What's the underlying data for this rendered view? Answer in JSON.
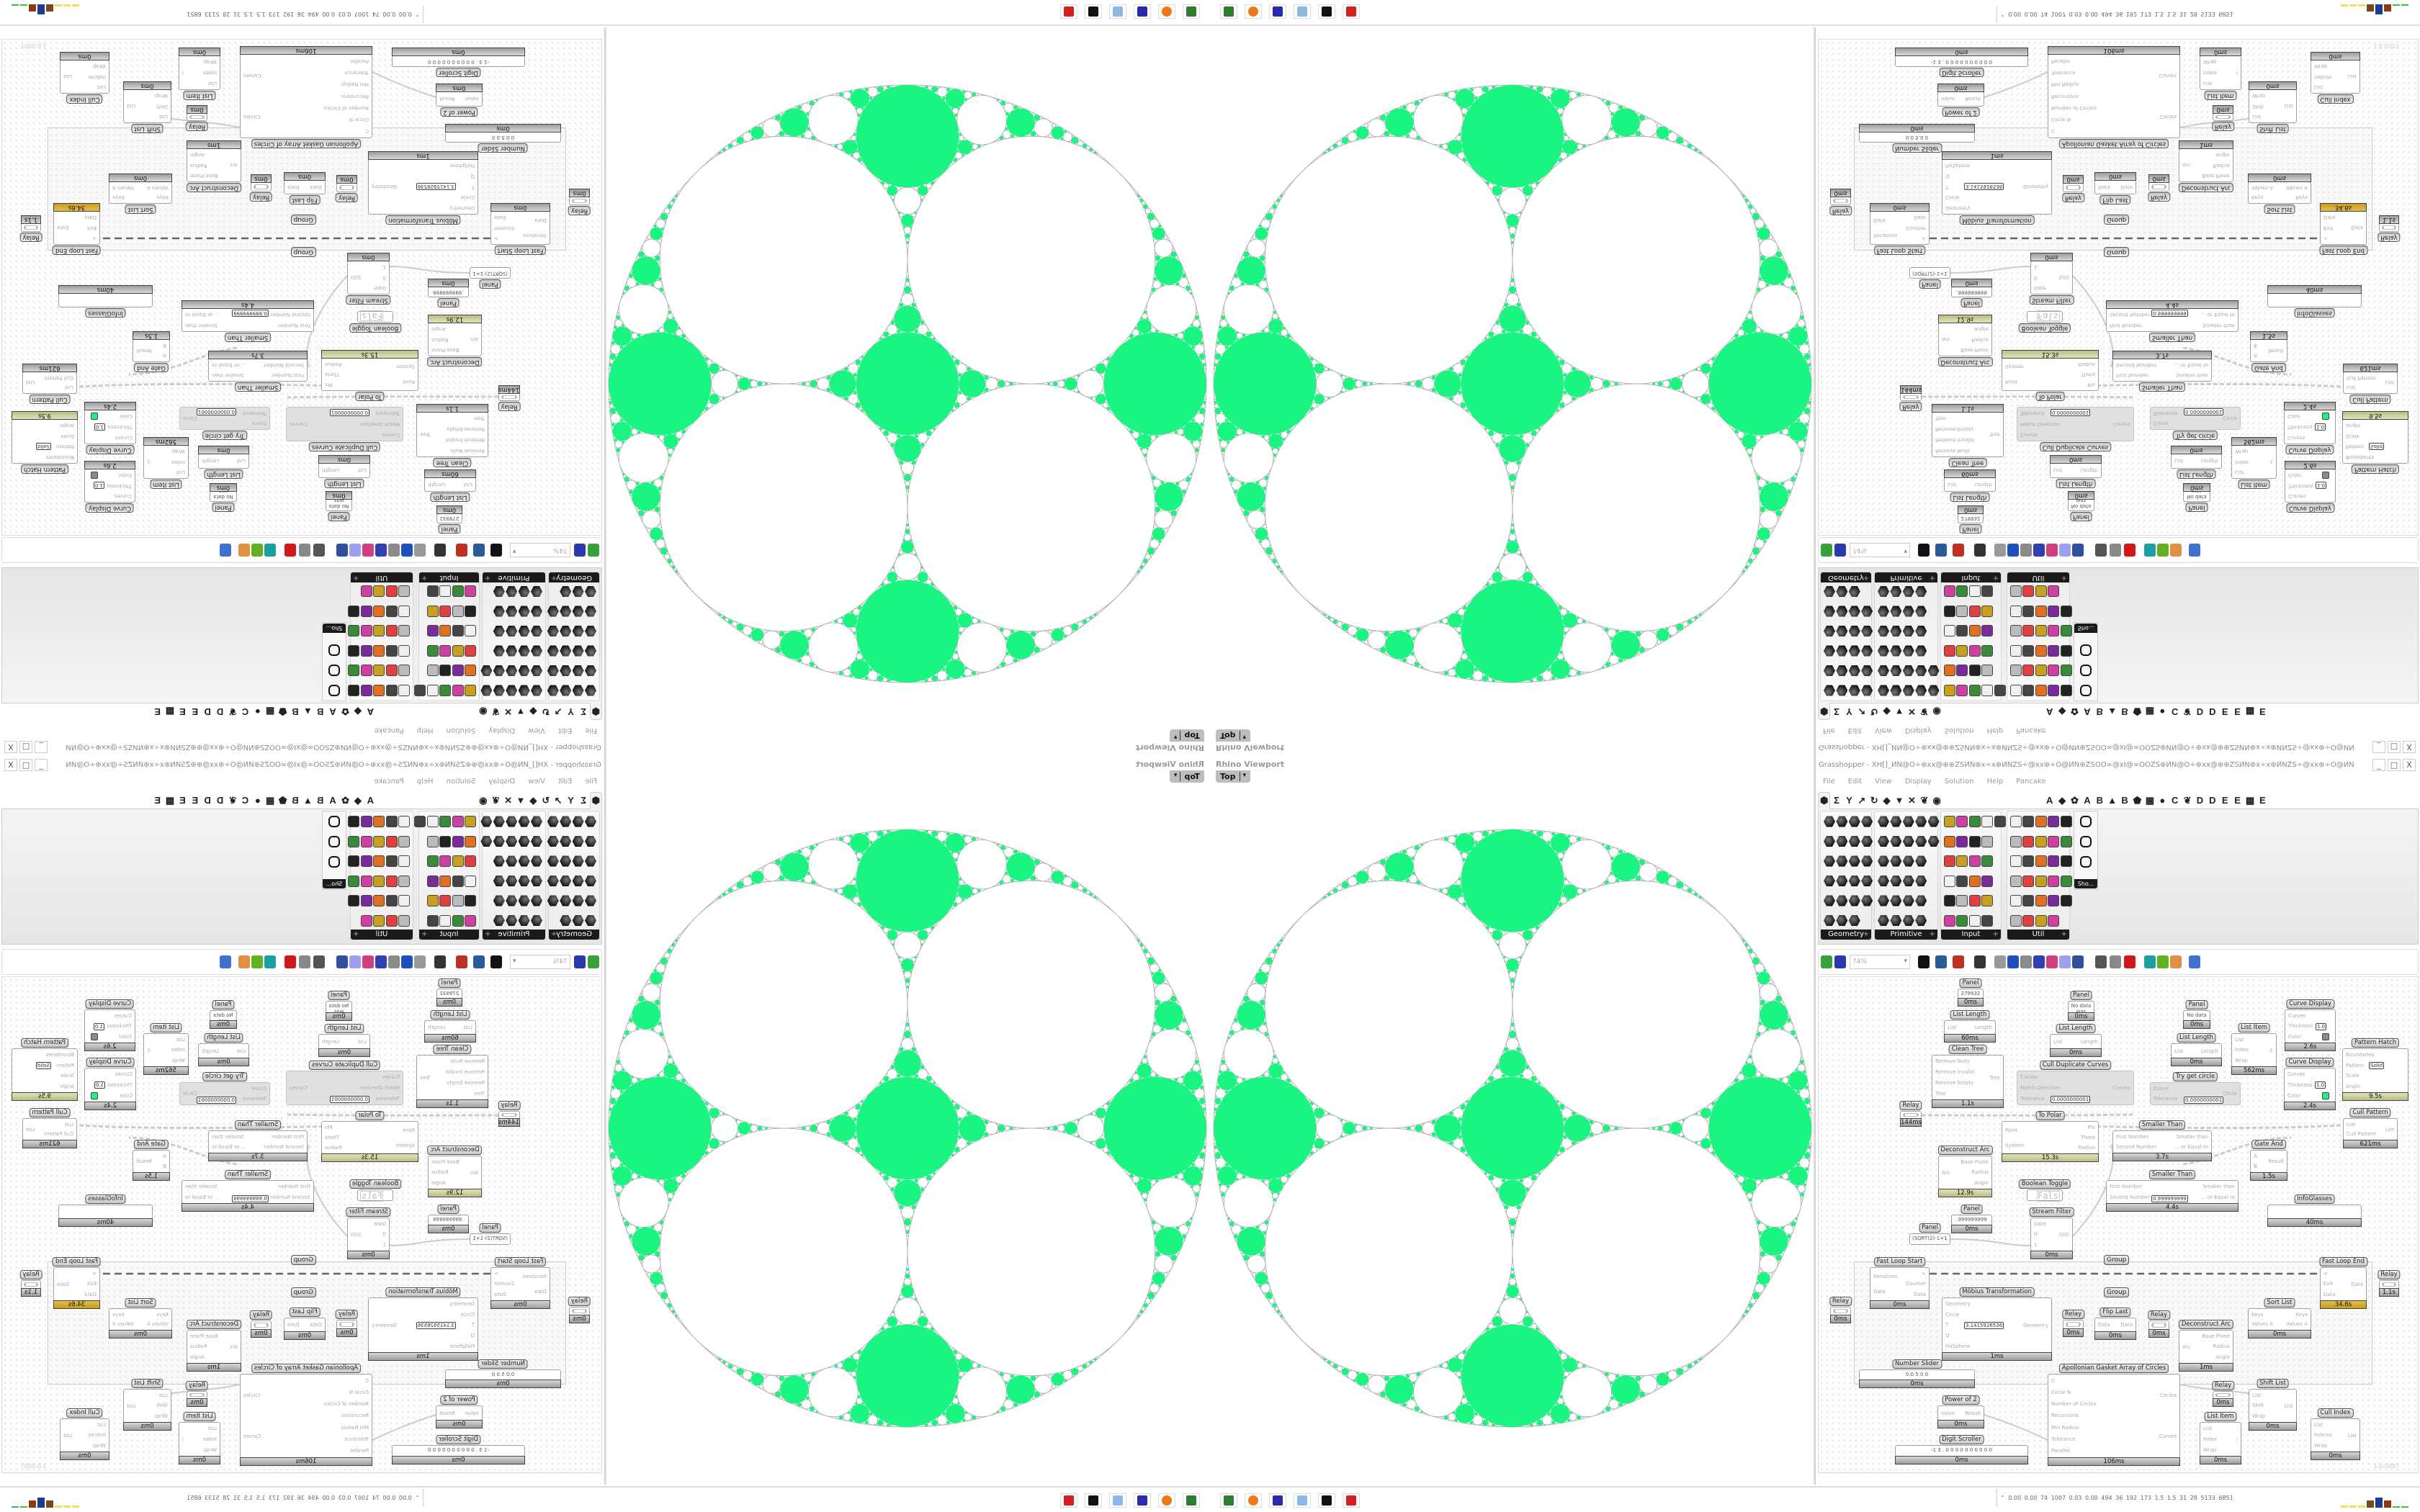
{
  "viewport": {
    "title": "Rhino Viewport",
    "view": "Top",
    "dropdown_icon": "▾"
  },
  "grasshopper": {
    "title": "Grasshopper - XH[]_ИN@O÷⊕xx@⊕⊕ZSИN⊕x÷x⊕ИNZS÷@xx⊕÷O@ИN⊕ZSOO∞@xI@∞OOZS⊕ИN@O÷⊕xx@⊕⊕ZSИN⊕x÷x⊕ИNZS÷@xx⊕÷O@ИN",
    "window_controls": [
      "_",
      "□",
      "X"
    ],
    "menu": [
      "File",
      "Edit",
      "View",
      "Display",
      "Solution",
      "Help",
      "Pancake"
    ],
    "tabs": [
      "⬢",
      "Σ",
      "Y",
      "↗",
      "↻",
      "◆",
      "▼",
      "✕",
      "❦",
      "◉",
      "",
      "",
      "",
      "",
      "",
      "",
      "",
      "",
      "A",
      "◆",
      "✿",
      "A",
      "B",
      "▲",
      "B",
      "⬟",
      "▦",
      "●",
      "C",
      "❦",
      "D",
      "D",
      "E",
      "E",
      "▩",
      "E"
    ],
    "ribbon_panels": [
      "Geometry",
      "Primitive",
      "Input",
      "Util"
    ],
    "show_button": "Sho...",
    "zoom": "74%",
    "version": "1.0.0007"
  },
  "canvas": {
    "group_labels": [
      "Group",
      "Group"
    ],
    "components": [
      {
        "label": "Panel",
        "kind": "panel",
        "val": "279932",
        "time": "0ms"
      },
      {
        "label": "List Length",
        "in": [
          "List"
        ],
        "out": [
          "Length"
        ],
        "time": "60ms"
      },
      {
        "label": "Clean Tree",
        "in": [
          "Remove Nulls",
          "Remove Invalid",
          "Remove Empty",
          "Tree"
        ],
        "out": [
          "Tree"
        ],
        "time": "1.1s"
      },
      {
        "label": "Panel",
        "kind": "panel",
        "val": "No data was",
        "time": "0ms"
      },
      {
        "label": "List Length",
        "in": [
          "List"
        ],
        "out": [
          "Length"
        ],
        "time": "0ms"
      },
      {
        "label": "Cull Duplicate Curves",
        "kind": "disabled",
        "in": [
          "Curves",
          "Match Direction",
          "Tolerance"
        ],
        "out": [
          "Curves"
        ],
        "val": "0.0000000001"
      },
      {
        "label": "Relay",
        "kind": "relay",
        "time": "144ms"
      },
      {
        "label": "To Polar",
        "in": [
          "Point",
          "System"
        ],
        "out": [
          "Phi",
          "Theta",
          "Radius"
        ],
        "time": "15.3s",
        "bar": "olive"
      },
      {
        "label": "Deconstruct Arc",
        "in": [
          "Arc"
        ],
        "out": [
          "Base Plane",
          "Radius",
          "Angle"
        ],
        "time": "12.9s",
        "bar": "olive"
      },
      {
        "label": "Boolean Toggle",
        "kind": "toggle",
        "val": "False"
      },
      {
        "label": "Stream Filter",
        "in": [
          "Gate",
          "0",
          "1"
        ],
        "out": [
          "S(0)"
        ],
        "time": "0ms"
      },
      {
        "label": "Panel",
        "kind": "panel",
        "val": ".999999999",
        "time": "0ms"
      },
      {
        "label": "Panel",
        "kind": "panel",
        "val": "(SQRT(2)-1+1/512)*1"
      },
      {
        "label": "Panel",
        "kind": "panel",
        "val": "No data was",
        "time": "0ms"
      },
      {
        "label": "List Length",
        "in": [
          "List"
        ],
        "out": [
          "Length"
        ],
        "time": "0ms"
      },
      {
        "label": "Try get circle",
        "kind": "disabled",
        "in": [
          "Curve",
          "Tolerance"
        ],
        "out": [
          "Circle"
        ],
        "val": "0.0000000001"
      },
      {
        "label": "List Item",
        "in": [
          "List",
          "Index",
          "Wrap"
        ],
        "out": [
          "-1"
        ],
        "time": "562ms"
      },
      {
        "label": "Curve Display",
        "in": [
          "Curves",
          "Thickness",
          "Color"
        ],
        "time": "2.6s",
        "val": "1.0",
        "swatch": "#8c8c8c"
      },
      {
        "label": "Curve Display",
        "in": [
          "Curves",
          "Thickness",
          "Color"
        ],
        "time": "2.4s",
        "val": "1.0",
        "swatch": "#19f580"
      },
      {
        "label": "Pattern Hatch",
        "in": [
          "Boundaries",
          "Pattern",
          "Scale",
          "Angle"
        ],
        "time": "9.5s",
        "bar": "olive",
        "val": "Solid"
      },
      {
        "label": "Cull Pattern",
        "in": [
          "List",
          "Cull Pattern"
        ],
        "out": [
          "List"
        ],
        "time": "621ms"
      },
      {
        "label": "Smaller Than",
        "in": [
          "First Number",
          "Second Number"
        ],
        "out": [
          "Smaller than",
          "... or Equal to"
        ],
        "time": "3.7s"
      },
      {
        "label": "Gate And",
        "in": [
          "A",
          "B"
        ],
        "out": [
          "Result"
        ],
        "time": "1.5s"
      },
      {
        "label": "Smaller Than",
        "in": [
          "First Number",
          "Second Number"
        ],
        "out": [
          "Smaller than",
          "... or Equal to"
        ],
        "time": "4.4s",
        "val": "0.999999999"
      },
      {
        "label": "InfoGlasses",
        "time": "40ms"
      },
      {
        "label": "Fast Loop Start",
        "in": [
          "Iterations",
          "Data"
        ],
        "out": [
          ">",
          "Counter",
          "Data"
        ],
        "time": "0ms"
      },
      {
        "label": "Relay",
        "kind": "relay",
        "time": "0ms"
      },
      {
        "label": "Möbius Transformation",
        "in": [
          "Geometry",
          "Circle",
          "T",
          "Q",
          "FixSphere"
        ],
        "out": [
          "Geometry"
        ],
        "time": "1ms",
        "val": "3.1415926536"
      },
      {
        "label": "Relay",
        "kind": "relay",
        "time": "0ms"
      },
      {
        "label": "Flip Last",
        "in": [
          "Data"
        ],
        "out": [
          "Data"
        ],
        "time": "0ms"
      },
      {
        "label": "Number Slider",
        "kind": "slider",
        "val": "0.0  5.0  0",
        "time": "0ms"
      },
      {
        "label": "Power of 2",
        "in": [
          "Value"
        ],
        "out": [
          "Result"
        ],
        "time": "0ms"
      },
      {
        "label": "Digit Scroller",
        "kind": "slider",
        "val": "-1 3 . 0 0 0 0 0 0 0 0 0 0",
        "time": "0ms"
      },
      {
        "label": "Apollonian Gasket Array of Circles",
        "in": [
          "C",
          "Circle N",
          "Number of Circles",
          "Recursions",
          "Min Radius",
          "Tolerance",
          "Parallel"
        ],
        "out": [
          "Circles",
          "Curves"
        ],
        "time": "106ms"
      },
      {
        "label": "Relay",
        "kind": "relay",
        "time": "0ms"
      },
      {
        "label": "Deconstruct Arc",
        "in": [
          "Arc"
        ],
        "out": [
          "Base Plane",
          "Radius",
          "Angle"
        ],
        "time": "1ms"
      },
      {
        "label": "Sort List",
        "in": [
          "Keys",
          "Values A"
        ],
        "out": [
          "Keys",
          "Values A"
        ],
        "time": "0ms"
      },
      {
        "label": "Fast Loop End",
        "in": [
          "<",
          "Exit",
          "Data"
        ],
        "out": [
          "Data"
        ],
        "time": "34.6s",
        "bar": "gold"
      },
      {
        "label": "Relay",
        "kind": "relay",
        "time": "1.1s"
      },
      {
        "label": "Relay",
        "kind": "relay",
        "time": "0ms"
      },
      {
        "label": "Shift List",
        "in": [
          "List",
          "Shift",
          "Wrap"
        ],
        "out": [
          "List"
        ],
        "time": "0ms"
      },
      {
        "label": "List Item",
        "in": [
          "List",
          "Index",
          "Wrap"
        ],
        "out": [
          "i"
        ],
        "time": "0ms"
      },
      {
        "label": "Cull Index",
        "in": [
          "List",
          "Indices",
          "Wrap"
        ],
        "out": [
          "List"
        ],
        "time": "0ms"
      }
    ]
  },
  "taskbar": {
    "apps": [
      {
        "icon": "display-app-icon",
        "color": "#2f7d2f"
      },
      {
        "icon": "firefox-icon",
        "color": "#f07a1a"
      },
      {
        "icon": "floppy-64-icon",
        "color": "#2a2ab0"
      },
      {
        "icon": "calculator-icon",
        "color": "#8fb6e6"
      },
      {
        "icon": "rhino-icon",
        "color": "#111111"
      },
      {
        "icon": "gear-app-icon",
        "color": "#d42020"
      }
    ],
    "status": "⌃  0.00 0.00  74  1007 0.03 0.00  494  36  192  173  1.5  1.5  31  28  5133 6851",
    "meter_colors": [
      "#f0e060",
      "#f0e060",
      "#f0e060",
      "#7a4a14",
      "#1e3c8c",
      "#8a3a10",
      "#40c040",
      "#40c040"
    ]
  },
  "colors": {
    "fill": "#19f580",
    "stroke": "#a8a8a8"
  }
}
